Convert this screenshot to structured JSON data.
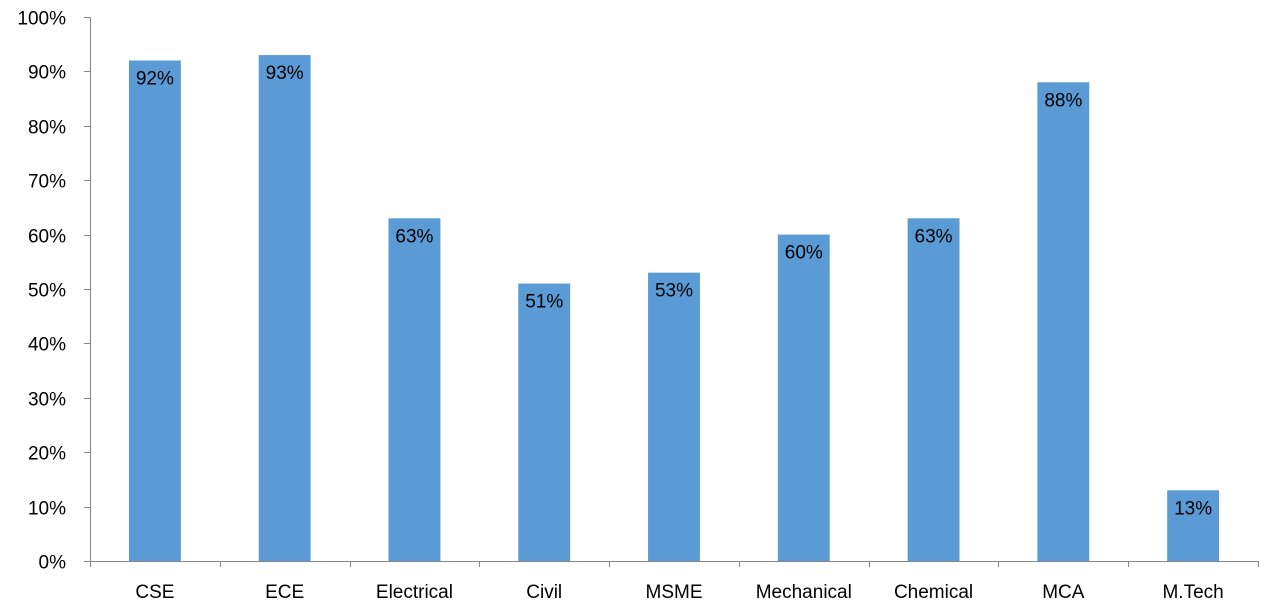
{
  "chart_data": {
    "type": "bar",
    "categories": [
      "CSE",
      "ECE",
      "Electrical",
      "Civil",
      "MSME",
      "Mechanical",
      "Chemical",
      "MCA",
      "M.Tech"
    ],
    "series": [
      {
        "values": [
          92,
          93,
          63,
          51,
          53,
          60,
          63,
          88,
          13
        ]
      }
    ],
    "data_labels": [
      "92%",
      "93%",
      "63%",
      "51%",
      "53%",
      "60%",
      "63%",
      "88%",
      "13%"
    ],
    "y_tick_labels": [
      "0%",
      "10%",
      "20%",
      "30%",
      "40%",
      "50%",
      "60%",
      "70%",
      "80%",
      "90%",
      "100%"
    ],
    "ylim": [
      0,
      100
    ],
    "y_unit": "%",
    "grid": false,
    "legend": "none",
    "bar_color": "#5b9bd5",
    "axis_color": "#868686",
    "title": "",
    "xlabel": "",
    "ylabel": ""
  }
}
